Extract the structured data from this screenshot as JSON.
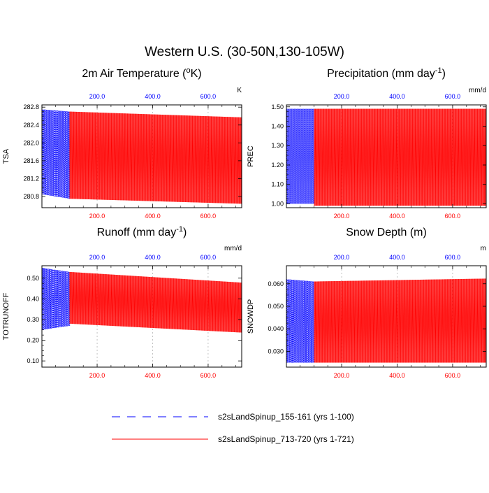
{
  "figure": {
    "title": "Western U.S. (30-50N,130-105W)"
  },
  "legend": [
    {
      "label": "s2sLandSpinup_155-161 (yrs 1-100)",
      "color": "#0000ff",
      "style": "dashed"
    },
    {
      "label": "s2sLandSpinup_713-720 (yrs 1-721)",
      "color": "#ff0000",
      "style": "solid"
    }
  ],
  "chart_data": [
    {
      "type": "line",
      "title_text": "2m Air Temperature (",
      "title_sup": "o",
      "title_after": "K)",
      "ylabel": "TSA",
      "units": "K",
      "ylim": [
        280.55,
        282.85
      ],
      "yticks": [
        280.8,
        281.2,
        281.6,
        282.0,
        282.4,
        282.8
      ],
      "ytick_labels": [
        "280.8",
        "281.2",
        "281.6",
        "282.0",
        "282.4",
        "282.8"
      ],
      "xlim_bottom": [
        1,
        721
      ],
      "xlim_top": [
        1,
        721
      ],
      "xticks": [
        200,
        400,
        600
      ],
      "xtick_labels": [
        "200.0",
        "400.0",
        "600.0"
      ],
      "series": [
        {
          "name": "s2sLandSpinup_155-161 (yrs 1-100)",
          "years": 100,
          "max_start": 282.75,
          "max_end": 282.7,
          "min_start": 280.85,
          "min_end": 280.75,
          "mid_start": 281.6,
          "mid_end": 281.55
        },
        {
          "name": "s2sLandSpinup_713-720 (yrs 1-721)",
          "years": 721,
          "offset": 100,
          "max_start": 282.7,
          "max_end": 282.55,
          "min_start": 280.75,
          "min_end": 280.62,
          "mid_start": 281.55,
          "mid_end": 281.38
        }
      ]
    },
    {
      "type": "line",
      "title_text": "Precipitation (mm day",
      "title_sup": "-1",
      "title_after": ")",
      "ylabel": "PREC",
      "units": "mm/d",
      "ylim": [
        0.98,
        1.51
      ],
      "yticks": [
        1.0,
        1.1,
        1.2,
        1.3,
        1.4,
        1.5
      ],
      "ytick_labels": [
        "1.00",
        "1.10",
        "1.20",
        "1.30",
        "1.40",
        "1.50"
      ],
      "xlim_bottom": [
        1,
        721
      ],
      "xlim_top": [
        1,
        721
      ],
      "xticks": [
        200,
        400,
        600
      ],
      "xtick_labels": [
        "200.0",
        "400.0",
        "600.0"
      ],
      "series": [
        {
          "name": "s2sLandSpinup_155-161 (yrs 1-100)",
          "years": 100,
          "max_start": 1.49,
          "max_end": 1.49,
          "min_start": 1.0,
          "min_end": 1.0,
          "mid_start": 1.25,
          "mid_end": 1.25
        },
        {
          "name": "s2sLandSpinup_713-720 (yrs 1-721)",
          "years": 721,
          "offset": 100,
          "max_start": 1.49,
          "max_end": 1.49,
          "min_start": 0.99,
          "min_end": 0.99,
          "mid_start": 1.25,
          "mid_end": 1.25
        }
      ]
    },
    {
      "type": "line",
      "title_text": "Runoff (mm day",
      "title_sup": "-1",
      "title_after": ")",
      "ylabel": "TOTRUNOFF",
      "units": "mm/d",
      "ylim": [
        0.07,
        0.56
      ],
      "yticks": [
        0.1,
        0.2,
        0.3,
        0.4,
        0.5
      ],
      "ytick_labels": [
        "0.10",
        "0.20",
        "0.30",
        "0.40",
        "0.50"
      ],
      "xlim_bottom": [
        1,
        721
      ],
      "xlim_top": [
        1,
        721
      ],
      "xticks": [
        200,
        400,
        600
      ],
      "xtick_labels": [
        "200.0",
        "400.0",
        "600.0"
      ],
      "series": [
        {
          "name": "s2sLandSpinup_155-161 (yrs 1-100)",
          "years": 100,
          "max_start": 0.55,
          "max_end": 0.53,
          "min_start": 0.25,
          "min_end": 0.27,
          "mid_start": 0.4,
          "mid_end": 0.39
        },
        {
          "name": "s2sLandSpinup_713-720 (yrs 1-721)",
          "years": 721,
          "offset": 100,
          "max_start": 0.53,
          "max_end": 0.47,
          "min_start": 0.28,
          "min_end": 0.23,
          "mid_start": 0.39,
          "mid_end": 0.35
        }
      ]
    },
    {
      "type": "line",
      "title_text": "Snow Depth (m)",
      "title_sup": "",
      "title_after": "",
      "ylabel": "SNOWDP",
      "units": "m",
      "ylim": [
        0.023,
        0.068
      ],
      "yticks": [
        0.03,
        0.04,
        0.05,
        0.06
      ],
      "ytick_labels": [
        "0.030",
        "0.040",
        "0.050",
        "0.060"
      ],
      "xlim_bottom": [
        1,
        721
      ],
      "xlim_top": [
        1,
        721
      ],
      "xticks": [
        200,
        400,
        600
      ],
      "xtick_labels": [
        "200.0",
        "400.0",
        "600.0"
      ],
      "series": [
        {
          "name": "s2sLandSpinup_155-161 (yrs 1-100)",
          "years": 100,
          "max_start": 0.062,
          "max_end": 0.061,
          "min_start": 0.025,
          "min_end": 0.025,
          "mid_start": 0.05,
          "mid_end": 0.05
        },
        {
          "name": "s2sLandSpinup_713-720 (yrs 1-721)",
          "years": 721,
          "offset": 100,
          "max_start": 0.061,
          "max_end": 0.0625,
          "min_start": 0.025,
          "min_end": 0.025,
          "mid_start": 0.05,
          "mid_end": 0.051
        }
      ]
    }
  ]
}
